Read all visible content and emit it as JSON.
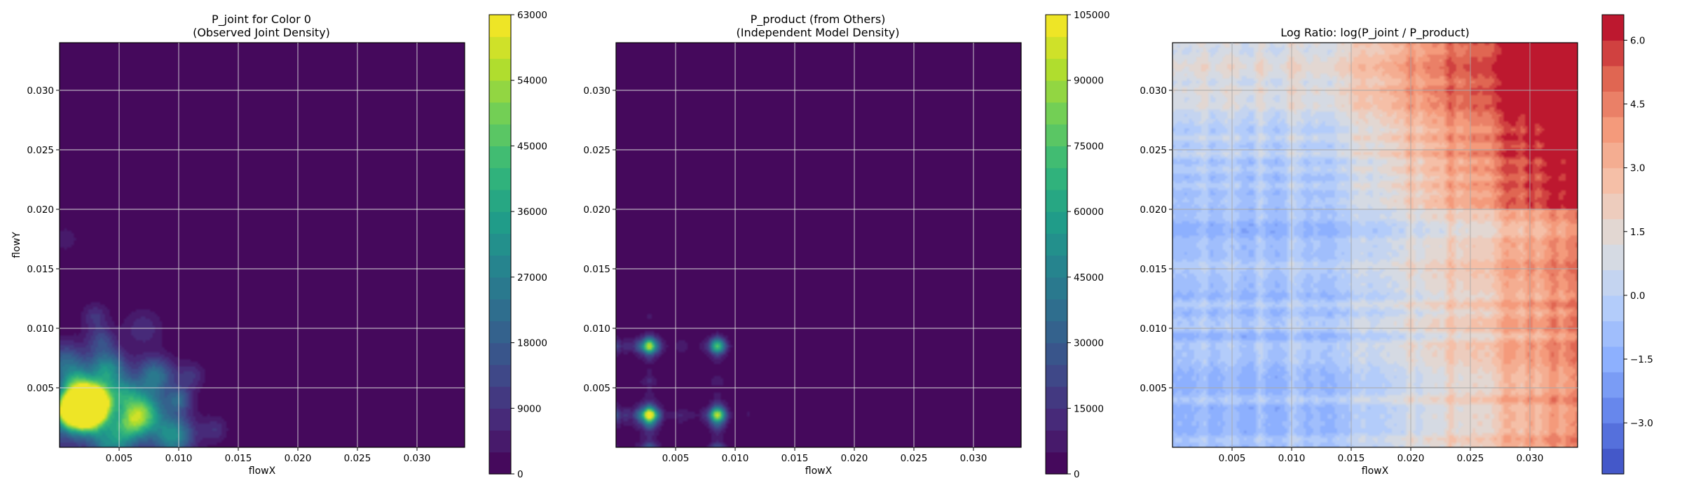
{
  "chart_data": [
    {
      "type": "heatmap",
      "title": "P_joint for Color 0\n(Observed Joint Density)",
      "xlabel": "flowX",
      "ylabel": "flowY",
      "xlim": [
        0,
        0.034
      ],
      "ylim": [
        0,
        0.034
      ],
      "xticks": [
        "0.005",
        "0.010",
        "0.015",
        "0.020",
        "0.025",
        "0.030"
      ],
      "yticks": [
        "0.005",
        "0.010",
        "0.015",
        "0.020",
        "0.025",
        "0.030"
      ],
      "grid": true,
      "colormap": "viridis",
      "colorbar": {
        "min": 0,
        "max": 63000,
        "levels": 21,
        "ticks": [
          "0",
          "9000",
          "18000",
          "27000",
          "36000",
          "45000",
          "54000",
          "63000"
        ]
      },
      "hotspots": [
        {
          "x": 0.0015,
          "y": 0.0035,
          "value": 56000
        },
        {
          "x": 0.0025,
          "y": 0.003,
          "value": 62000
        },
        {
          "x": 0.003,
          "y": 0.004,
          "value": 55000
        },
        {
          "x": 0.001,
          "y": 0.003,
          "value": 40000
        },
        {
          "x": 0.007,
          "y": 0.003,
          "value": 38000
        },
        {
          "x": 0.004,
          "y": 0.0065,
          "value": 30000
        },
        {
          "x": 0.0095,
          "y": 0.001,
          "value": 30000
        },
        {
          "x": 0.008,
          "y": 0.006,
          "value": 24000
        },
        {
          "x": 0.006,
          "y": 0.002,
          "value": 26000
        },
        {
          "x": 0.0015,
          "y": 0.0055,
          "value": 22000
        },
        {
          "x": 0.0005,
          "y": 0.007,
          "value": 20000
        },
        {
          "x": 0.003,
          "y": 0.011,
          "value": 9000
        },
        {
          "x": 0.007,
          "y": 0.01,
          "value": 8000
        },
        {
          "x": 0.011,
          "y": 0.006,
          "value": 9000
        },
        {
          "x": 0.013,
          "y": 0.0015,
          "value": 8000
        },
        {
          "x": 0.0045,
          "y": 0.0005,
          "value": 25000
        },
        {
          "x": 0.0035,
          "y": 0.009,
          "value": 12000
        },
        {
          "x": 0.0005,
          "y": 0.0175,
          "value": 4000
        },
        {
          "x": 0.01,
          "y": 0.004,
          "value": 18000
        },
        {
          "x": 0.0055,
          "y": 0.0045,
          "value": 22000
        }
      ]
    },
    {
      "type": "heatmap",
      "title": "P_product (from Others)\n(Independent Model Density)",
      "xlabel": "flowX",
      "ylabel": "",
      "xlim": [
        0,
        0.034
      ],
      "ylim": [
        0,
        0.034
      ],
      "xticks": [
        "0.005",
        "0.010",
        "0.015",
        "0.020",
        "0.025",
        "0.030"
      ],
      "yticks": [
        "0.005",
        "0.010",
        "0.015",
        "0.020",
        "0.025",
        "0.030"
      ],
      "grid": true,
      "colormap": "viridis",
      "colorbar": {
        "min": 0,
        "max": 105000,
        "levels": 21,
        "ticks": [
          "0",
          "15000",
          "30000",
          "45000",
          "60000",
          "75000",
          "90000",
          "105000"
        ]
      },
      "marginal_peaks_x": [
        0.0028,
        0.0085
      ],
      "marginal_peaks_y": [
        0.0027,
        0.0085
      ],
      "peaks": [
        {
          "x": 0.0028,
          "y": 0.0027,
          "value": 103000
        },
        {
          "x": 0.0028,
          "y": 0.0085,
          "value": 85000
        },
        {
          "x": 0.0085,
          "y": 0.0027,
          "value": 80000
        },
        {
          "x": 0.0085,
          "y": 0.0085,
          "value": 70000
        }
      ]
    },
    {
      "type": "heatmap",
      "title": "Log Ratio: log(P_joint / P_product)",
      "xlabel": "flowX",
      "ylabel": "",
      "xlim": [
        0,
        0.034
      ],
      "ylim": [
        0,
        0.034
      ],
      "xticks": [
        "0.005",
        "0.010",
        "0.015",
        "0.020",
        "0.025",
        "0.030"
      ],
      "yticks": [
        "0.005",
        "0.010",
        "0.015",
        "0.020",
        "0.025",
        "0.030"
      ],
      "grid": true,
      "colormap": "coolwarm",
      "colorbar": {
        "min": -4.2,
        "max": 6.6,
        "levels": 18,
        "ticks": [
          "6.0",
          "4.5",
          "3.0",
          "1.5",
          "0.0",
          "−1.5",
          "−3.0"
        ]
      },
      "trend": "log ratio rises from about -1 near the origin to about 6 in the upper-right corner"
    }
  ]
}
